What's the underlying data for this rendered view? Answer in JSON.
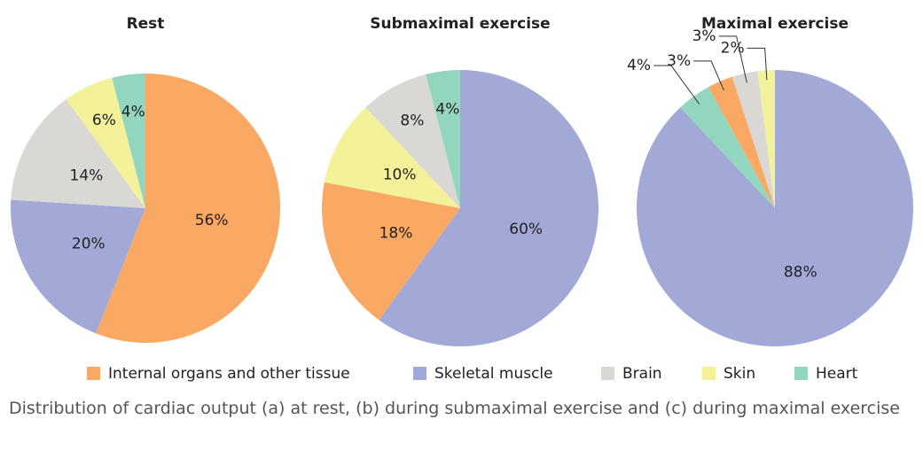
{
  "chart_data": [
    {
      "type": "pie",
      "title": "Rest",
      "categories": [
        "Internal organs and other tissue",
        "Skeletal muscle",
        "Brain",
        "Skin",
        "Heart"
      ],
      "values": [
        56,
        20,
        14,
        6,
        4
      ],
      "value_labels": [
        "56%",
        "20%",
        "14%",
        "6%",
        "4%"
      ],
      "colors": [
        "#f9a963",
        "#a2a9d6",
        "#d9d8d5",
        "#f3f19a",
        "#93d6bf"
      ]
    },
    {
      "type": "pie",
      "title": "Submaximal exercise",
      "categories": [
        "Skeletal muscle",
        "Internal organs and other tissue",
        "Skin",
        "Brain",
        "Heart"
      ],
      "values": [
        60,
        18,
        10,
        8,
        4
      ],
      "value_labels": [
        "60%",
        "18%",
        "10%",
        "8%",
        "4%"
      ],
      "colors": [
        "#a2a9d6",
        "#f9a963",
        "#f3f19a",
        "#d9d8d5",
        "#93d6bf"
      ]
    },
    {
      "type": "pie",
      "title": "Maximal exercise",
      "categories": [
        "Skeletal muscle",
        "Heart",
        "Internal organs and other tissue",
        "Brain",
        "Skin"
      ],
      "values": [
        88,
        4,
        3,
        3,
        2
      ],
      "value_labels": [
        "88%",
        "4%",
        "3%",
        "3%",
        "2%"
      ],
      "colors": [
        "#a2a9d6",
        "#93d6bf",
        "#f9a963",
        "#d9d8d5",
        "#f3f19a"
      ]
    }
  ],
  "legend": [
    {
      "name": "Internal organs and other tissue",
      "color": "#f9a963"
    },
    {
      "name": "Skeletal muscle",
      "color": "#a2a9d6"
    },
    {
      "name": "Brain",
      "color": "#d9d8d5"
    },
    {
      "name": "Skin",
      "color": "#f3f19a"
    },
    {
      "name": "Heart",
      "color": "#93d6bf"
    }
  ],
  "caption": "Distribution of cardiac output (a) at rest, (b) during submaximal exercise and (c) during maximal exercise"
}
